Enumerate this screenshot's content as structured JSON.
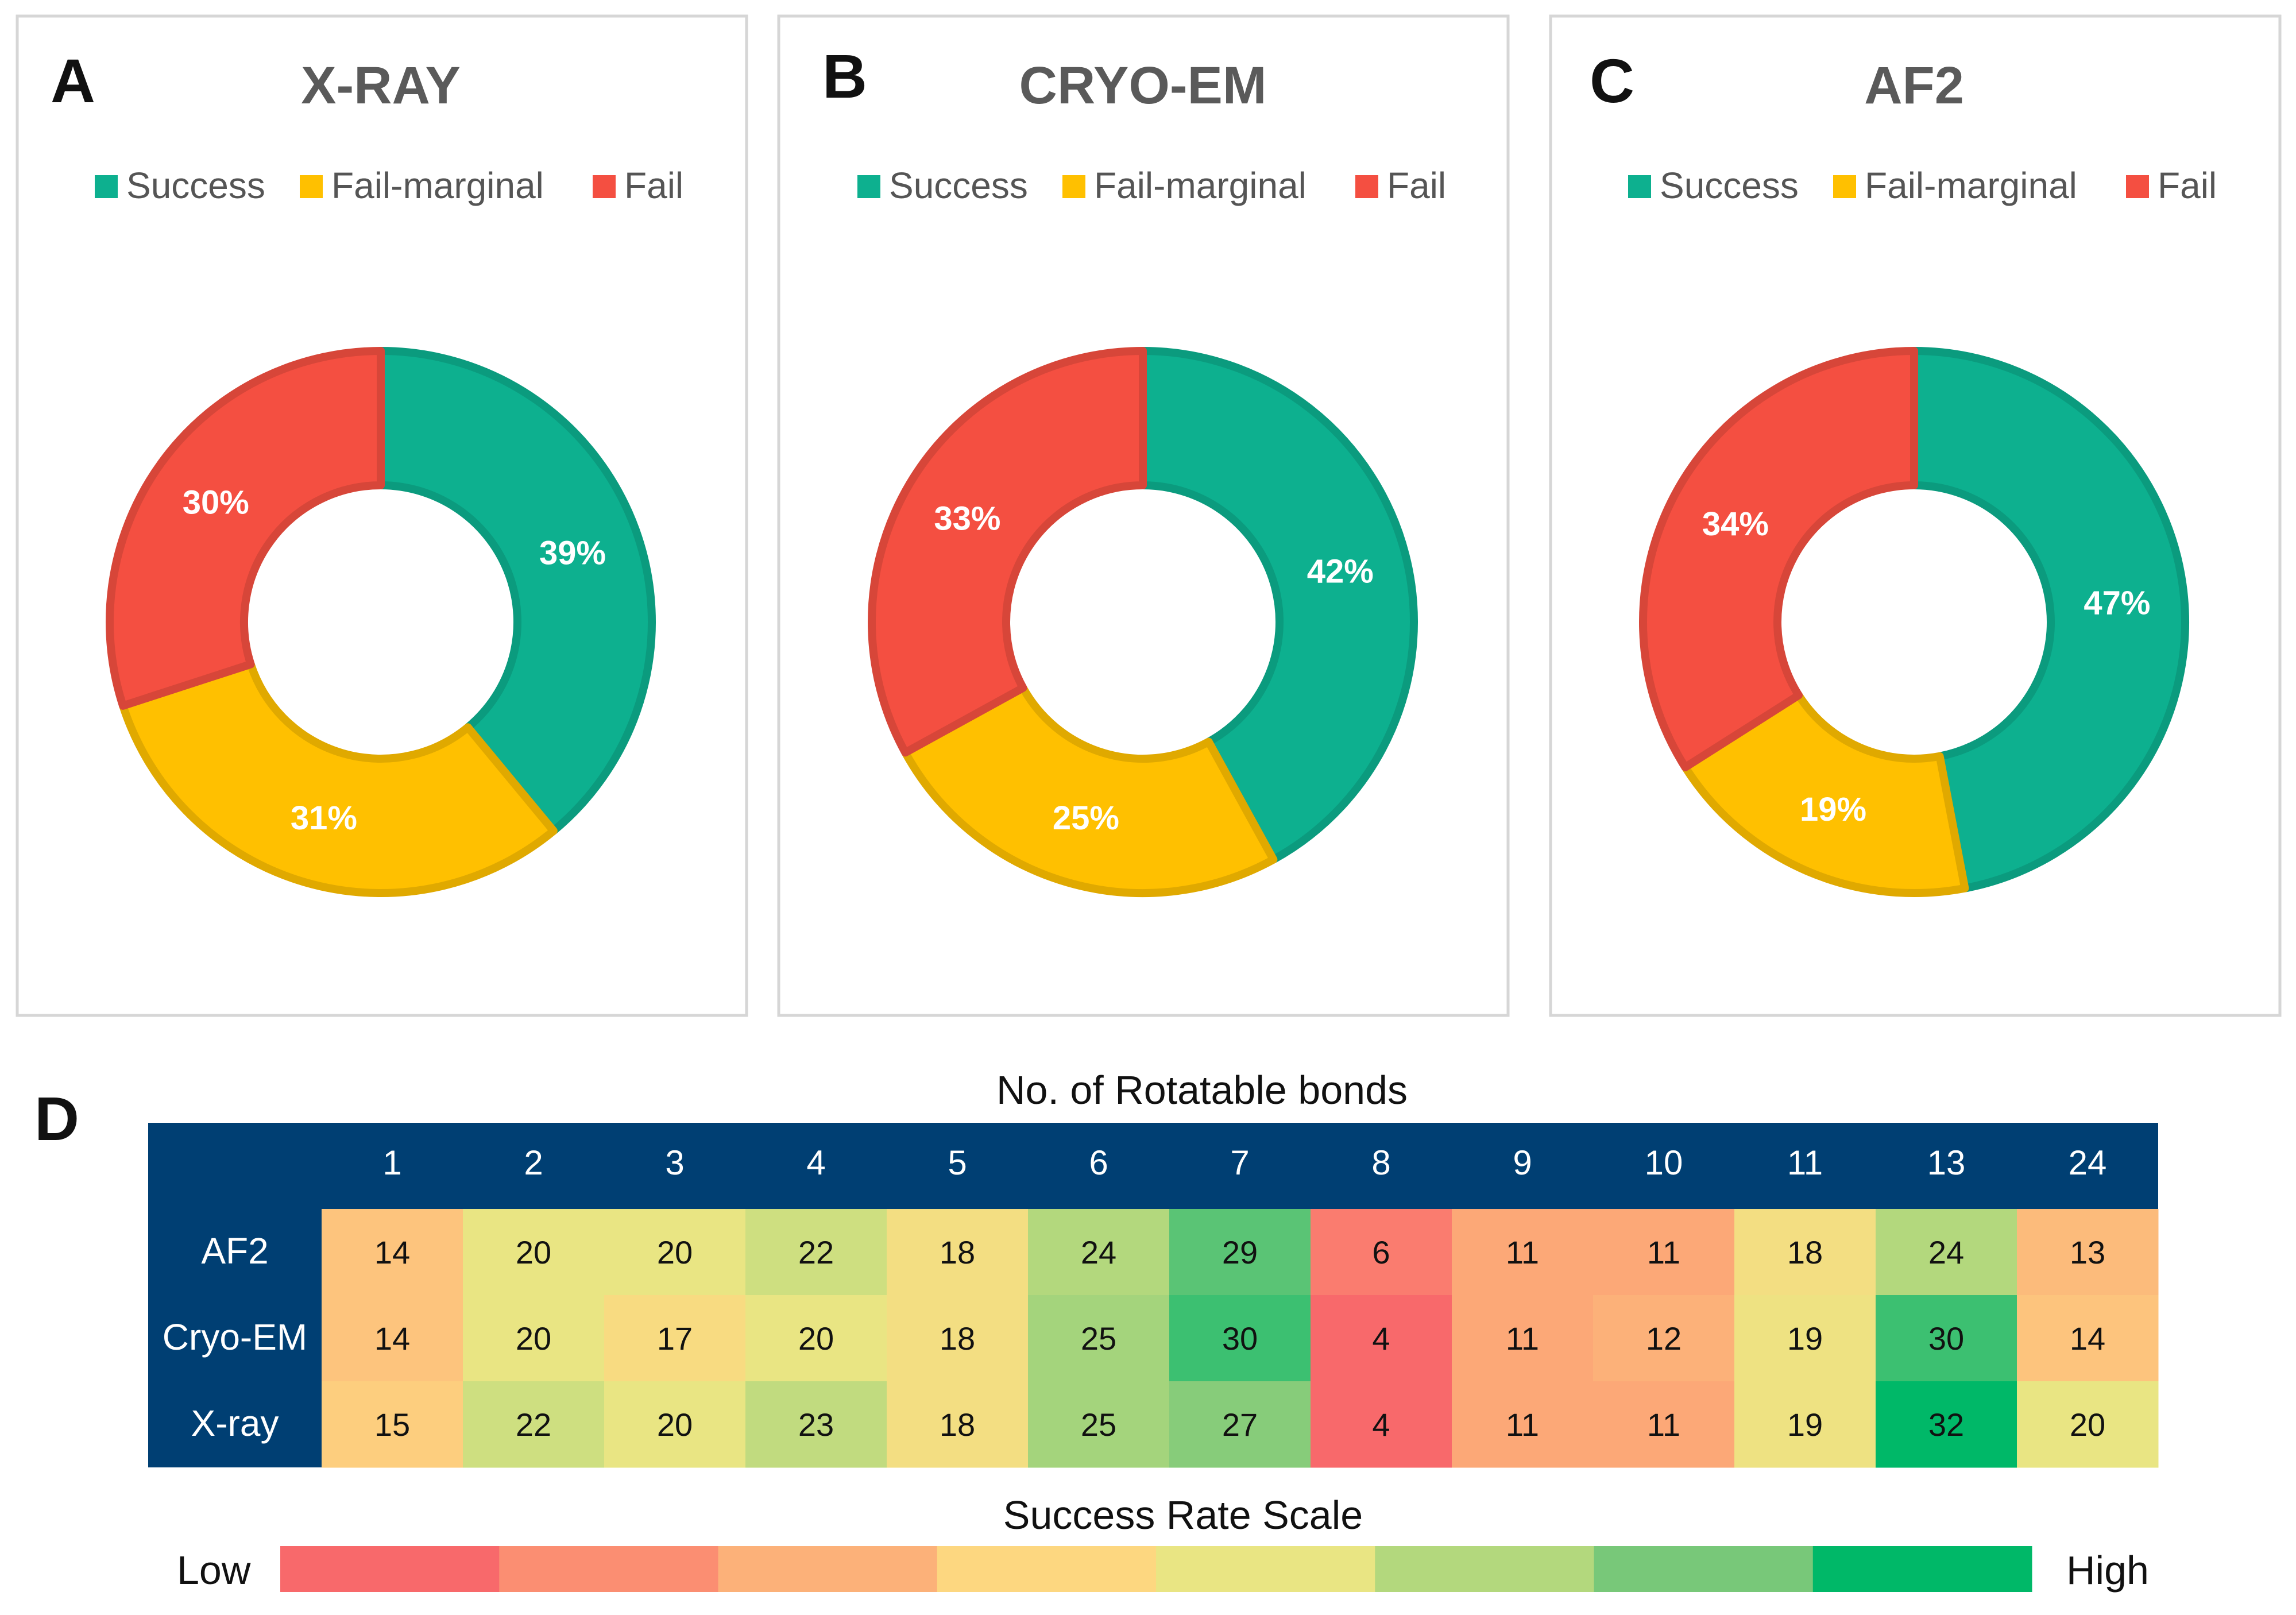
{
  "chart_data": [
    {
      "type": "pie",
      "panel": "A",
      "title": "X-RAY",
      "legend": [
        "Success",
        "Fail-marginal",
        "Fail"
      ],
      "categories": [
        "Success",
        "Fail-marginal",
        "Fail"
      ],
      "values": [
        39,
        31,
        30
      ],
      "labels": [
        "39%",
        "31%",
        "30%"
      ],
      "colors": [
        "#0db08f",
        "#ffc000",
        "#f44f41"
      ]
    },
    {
      "type": "pie",
      "panel": "B",
      "title": "CRYO-EM",
      "legend": [
        "Success",
        "Fail-marginal",
        "Fail"
      ],
      "categories": [
        "Success",
        "Fail-marginal",
        "Fail"
      ],
      "values": [
        42,
        25,
        33
      ],
      "labels": [
        "42%",
        "25%",
        "33%"
      ],
      "colors": [
        "#0db08f",
        "#ffc000",
        "#f44f41"
      ]
    },
    {
      "type": "pie",
      "panel": "C",
      "title": "AF2",
      "legend": [
        "Success",
        "Fail-marginal",
        "Fail"
      ],
      "categories": [
        "Success",
        "Fail-marginal",
        "Fail"
      ],
      "values": [
        47,
        19,
        34
      ],
      "labels": [
        "47%",
        "19%",
        "34%"
      ],
      "colors": [
        "#0db08f",
        "#ffc000",
        "#f44f41"
      ]
    },
    {
      "type": "heatmap",
      "panel": "D",
      "title": "No. of Rotatable bonds",
      "columns": [
        "1",
        "2",
        "3",
        "4",
        "5",
        "6",
        "7",
        "8",
        "9",
        "10",
        "11",
        "13",
        "24"
      ],
      "rows": [
        "AF2",
        "Cryo-EM",
        "X-ray"
      ],
      "values": [
        [
          14,
          20,
          20,
          22,
          18,
          24,
          29,
          6,
          11,
          11,
          18,
          24,
          13
        ],
        [
          14,
          20,
          17,
          20,
          18,
          25,
          30,
          4,
          11,
          12,
          19,
          30,
          14
        ],
        [
          15,
          22,
          20,
          23,
          18,
          25,
          27,
          4,
          11,
          11,
          19,
          32,
          20
        ]
      ],
      "header_color": "#003f73",
      "scale_title": "Success Rate Scale",
      "scale_low": "Low",
      "scale_high": "High",
      "scale_colors": [
        "#f8696b",
        "#fb8e72",
        "#fcb179",
        "#fdd780",
        "#e9e583",
        "#b3d87d",
        "#78c879",
        "#00b868"
      ]
    }
  ]
}
